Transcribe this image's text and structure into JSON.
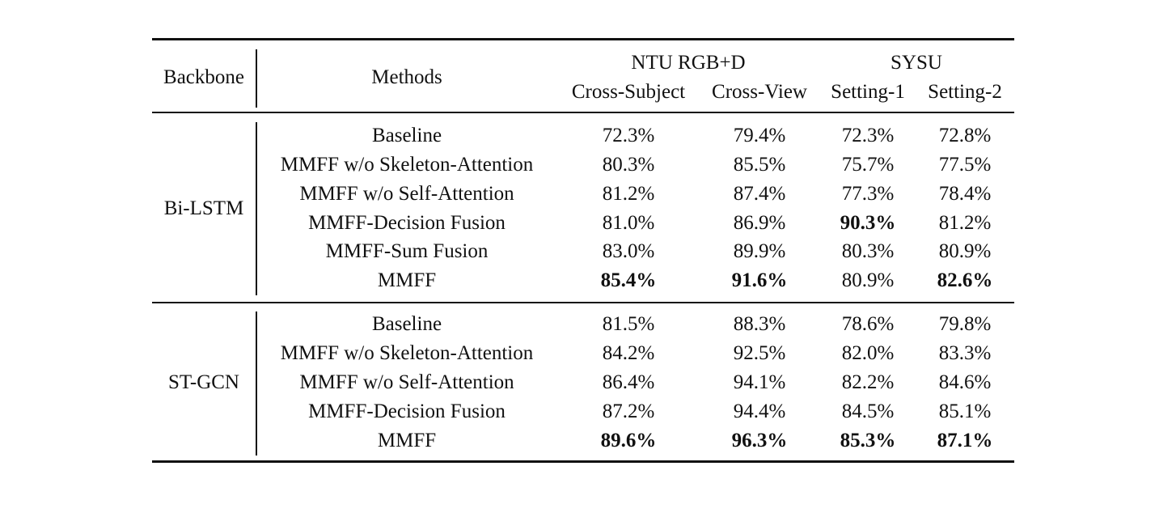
{
  "header": {
    "backbone": "Backbone",
    "methods": "Methods",
    "ntu": "NTU RGB+D",
    "sysu": "SYSU",
    "cross_subject": "Cross-Subject",
    "cross_view": "Cross-View",
    "setting1": "Setting-1",
    "setting2": "Setting-2"
  },
  "groups": [
    {
      "backbone": "Bi-LSTM",
      "rows": [
        {
          "method": "Baseline",
          "cs": "72.3%",
          "cv": "79.4%",
          "s1": "72.3%",
          "s2": "72.8%"
        },
        {
          "method": "MMFF w/o Skeleton-Attention",
          "cs": "80.3%",
          "cv": "85.5%",
          "s1": "75.7%",
          "s2": "77.5%"
        },
        {
          "method": "MMFF w/o Self-Attention",
          "cs": "81.2%",
          "cv": "87.4%",
          "s1": "77.3%",
          "s2": "78.4%"
        },
        {
          "method": "MMFF-Decision Fusion",
          "cs": "81.0%",
          "cv": "86.9%",
          "s1": "90.3%",
          "s2": "81.2%"
        },
        {
          "method": "MMFF-Sum Fusion",
          "cs": "83.0%",
          "cv": "89.9%",
          "s1": "80.3%",
          "s2": "80.9%"
        },
        {
          "method": "MMFF",
          "cs": "85.4%",
          "cv": "91.6%",
          "s1": "80.9%",
          "s2": "82.6%"
        }
      ]
    },
    {
      "backbone": "ST-GCN",
      "rows": [
        {
          "method": "Baseline",
          "cs": "81.5%",
          "cv": "88.3%",
          "s1": "78.6%",
          "s2": "79.8%"
        },
        {
          "method": "MMFF w/o Skeleton-Attention",
          "cs": "84.2%",
          "cv": "92.5%",
          "s1": "82.0%",
          "s2": "83.3%"
        },
        {
          "method": "MMFF w/o Self-Attention",
          "cs": "86.4%",
          "cv": "94.1%",
          "s1": "82.2%",
          "s2": "84.6%"
        },
        {
          "method": "MMFF-Decision Fusion",
          "cs": "87.2%",
          "cv": "94.4%",
          "s1": "84.5%",
          "s2": "85.1%"
        },
        {
          "method": "MMFF",
          "cs": "89.6%",
          "cv": "96.3%",
          "s1": "85.3%",
          "s2": "87.1%"
        }
      ]
    }
  ],
  "bold_cells": [
    "groups.0.rows.3.s1",
    "groups.0.rows.5.cs",
    "groups.0.rows.5.cv",
    "groups.0.rows.5.s2",
    "groups.1.rows.4.cs",
    "groups.1.rows.4.cv",
    "groups.1.rows.4.s1",
    "groups.1.rows.4.s2"
  ]
}
